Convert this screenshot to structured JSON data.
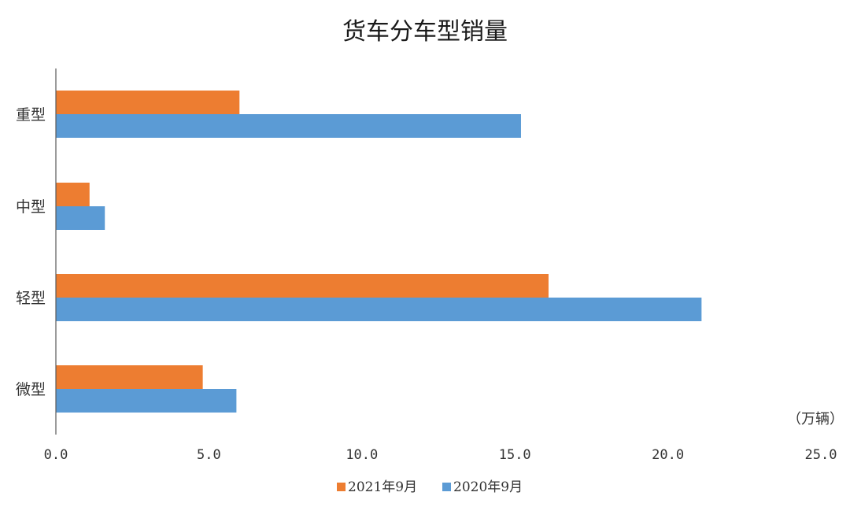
{
  "chart_data": {
    "type": "bar",
    "orientation": "horizontal",
    "title": "货车分车型销量",
    "unit_label": "（万辆）",
    "categories": [
      "重型",
      "中型",
      "轻型",
      "微型"
    ],
    "series": [
      {
        "name": "2021年9月",
        "color": "#ED7D31",
        "values": [
          6.0,
          1.1,
          16.1,
          4.8
        ]
      },
      {
        "name": "2020年9月",
        "color": "#5B9BD5",
        "values": [
          15.2,
          1.6,
          21.1,
          5.9
        ]
      }
    ],
    "xlim": [
      0,
      25
    ],
    "xticks": [
      0,
      5,
      10,
      15,
      20,
      25
    ],
    "xtick_labels": [
      "0.0",
      "5.0",
      "10.0",
      "15.0",
      "20.0",
      "25.0"
    ],
    "grid": false,
    "legend_position": "bottom"
  }
}
